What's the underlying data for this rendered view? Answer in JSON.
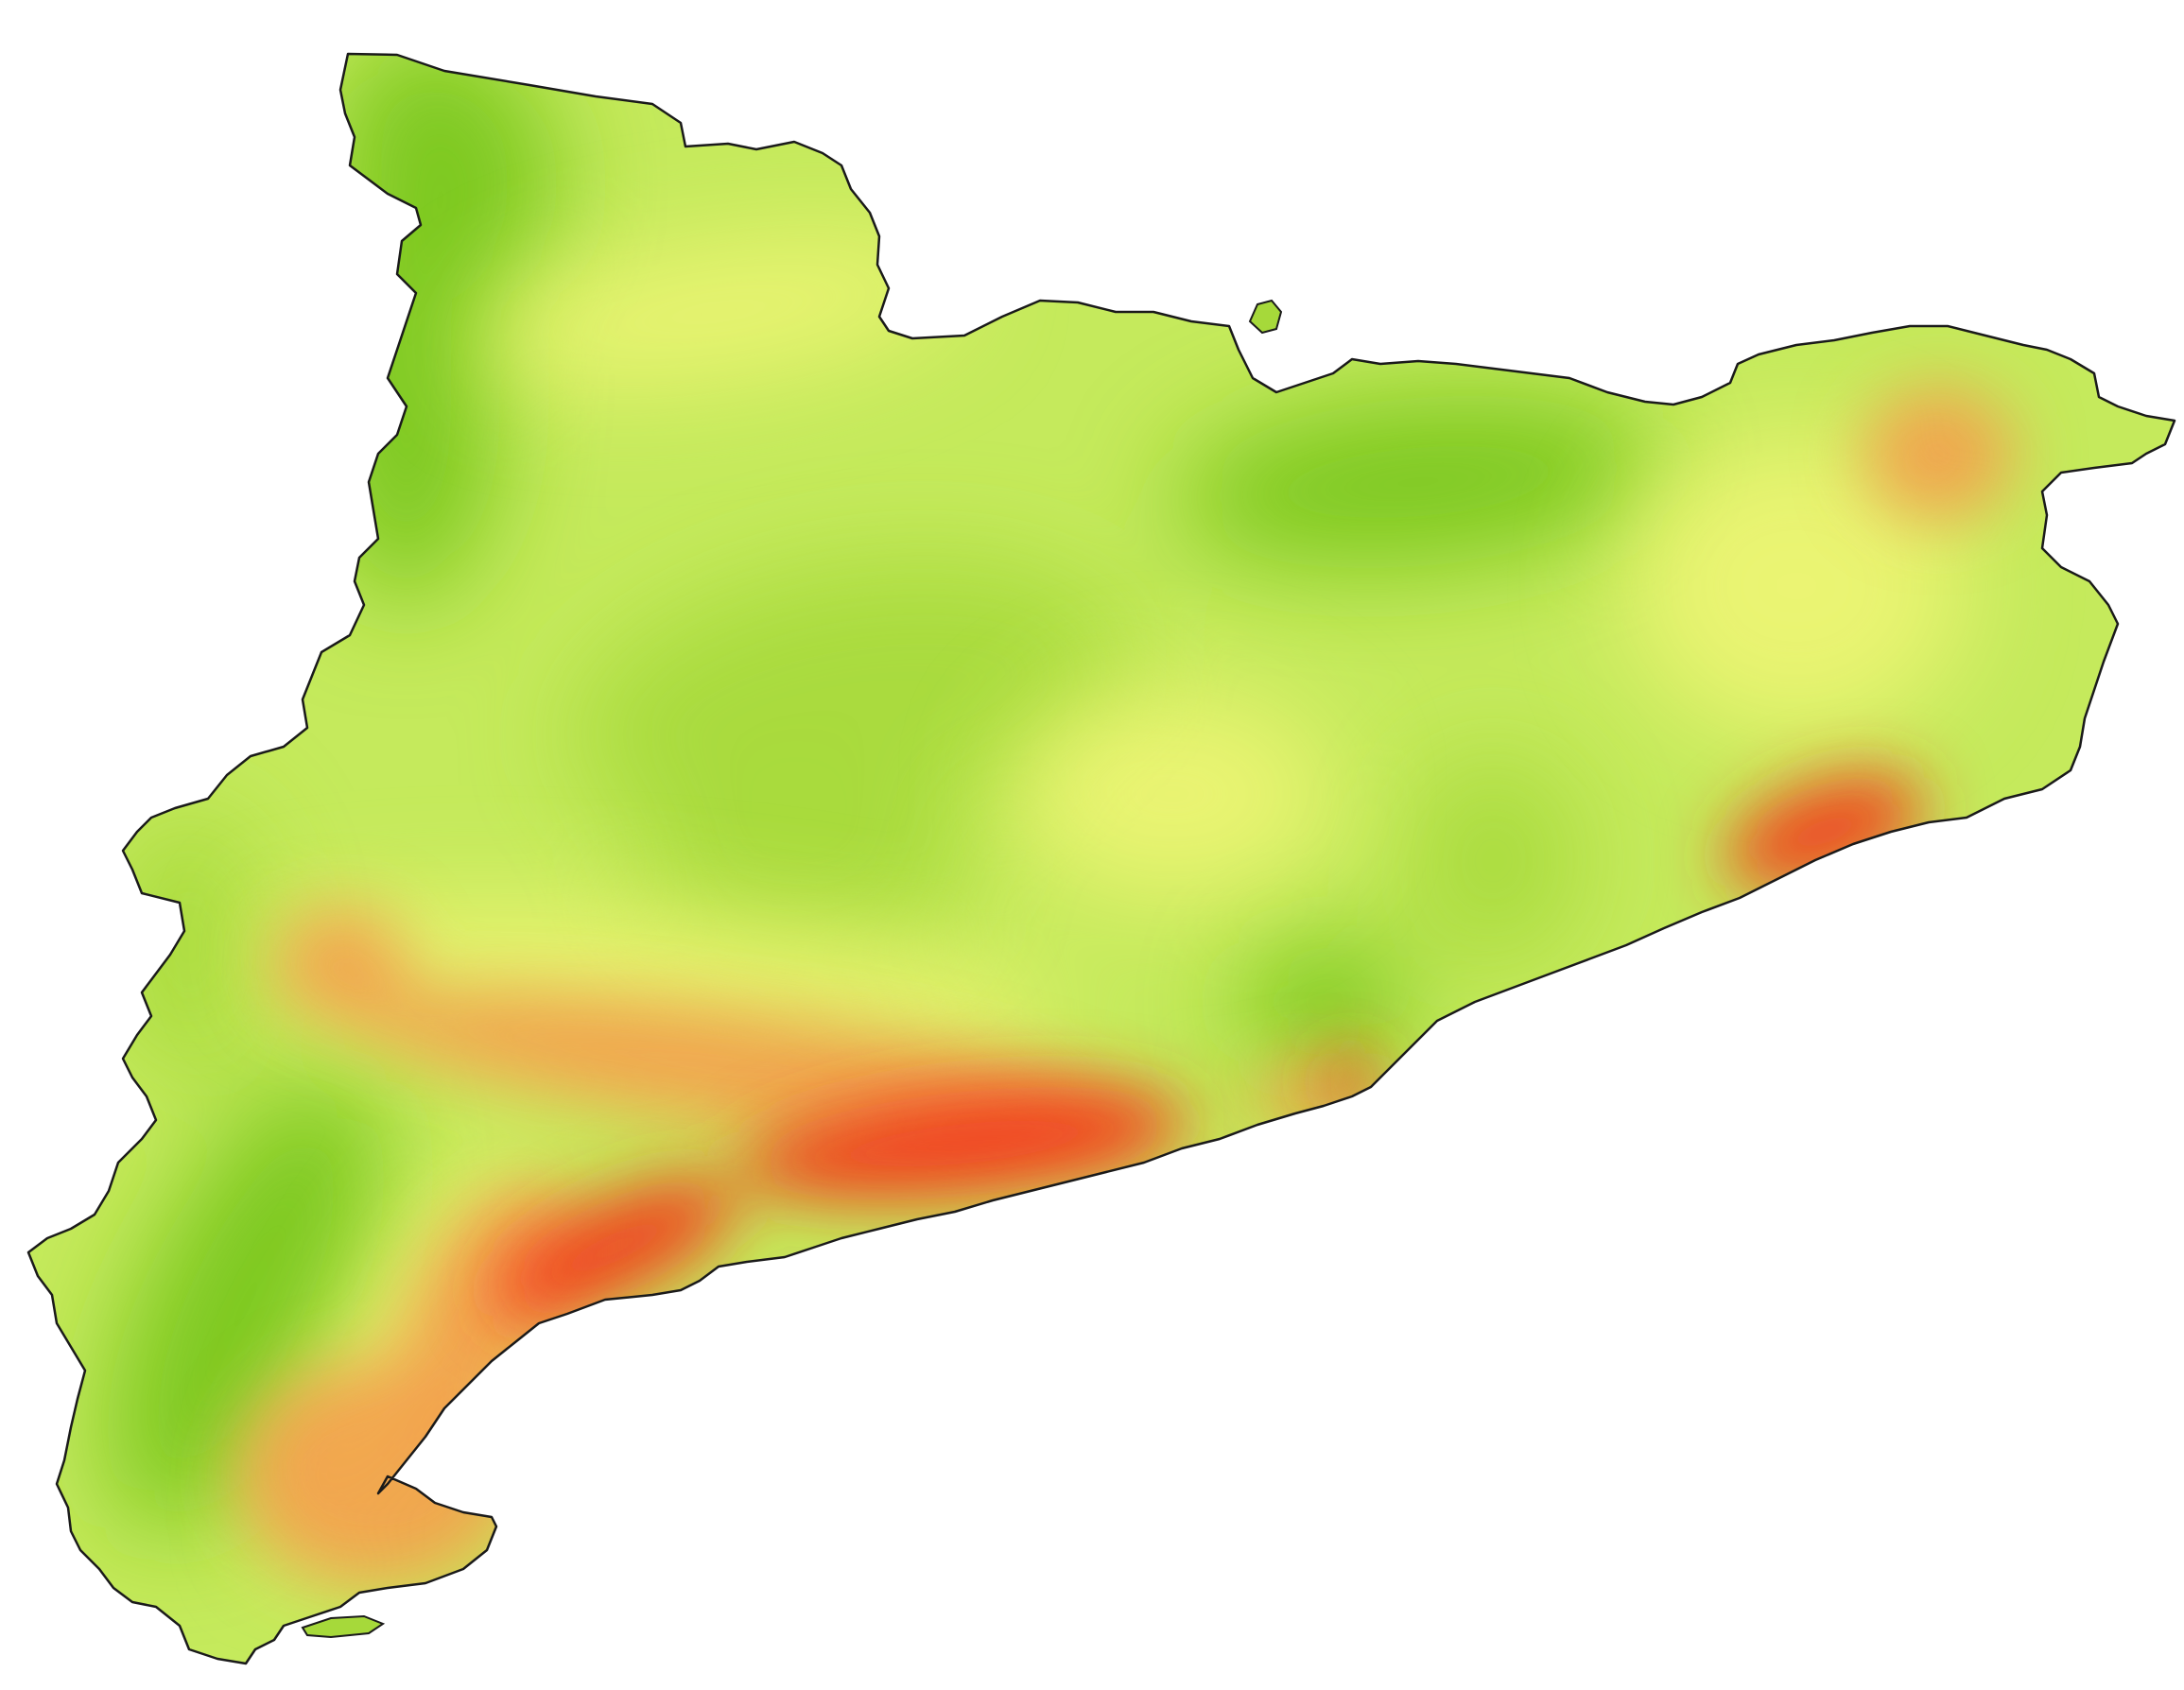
{
  "map": {
    "region": "",
    "colors": {
      "background": "#ffffff",
      "base_fill": "#c5ea5c",
      "green_dark": "#7ac71f",
      "green_mid": "#a6d93a",
      "yellow": "#eef576",
      "orange": "#f4a04c",
      "red": "#f23a20",
      "outline": "#1a1a1a"
    }
  }
}
